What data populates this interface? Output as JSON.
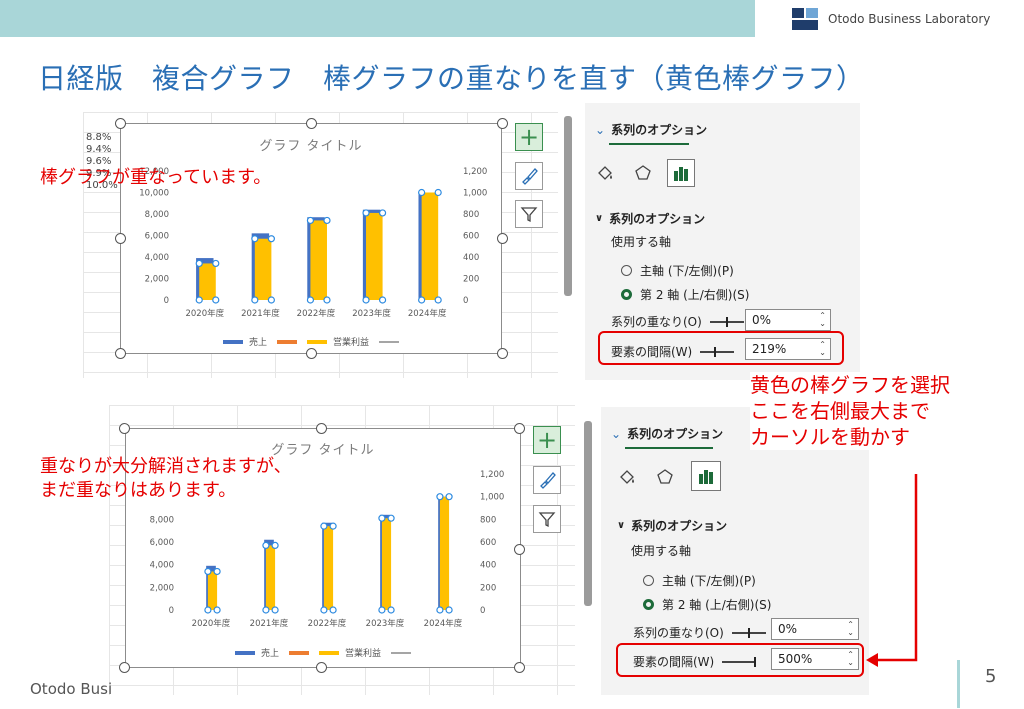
{
  "header": {
    "brand": "Otodo Business Laboratory",
    "title": "日経版　複合グラフ　棒グラフの重なりを直す（黄色棒グラフ）",
    "colors": {
      "bar": "#a9d6d8",
      "title": "#2a6fb5",
      "logo_dark": "#1f3d6b",
      "logo_light": "#6fa6d6"
    }
  },
  "chart1": {
    "title": "グラフ タイトル",
    "note": "棒グラフが重なっています。",
    "stray_labels": [
      "8.8%",
      "9.4%",
      "9.6%",
      "9.9%",
      "10.0%"
    ],
    "legend": [
      "売上",
      "",
      "営業利益",
      ""
    ]
  },
  "chart2": {
    "title": "グラフ タイトル",
    "note_lines": [
      "重なりが大分解消されますが、",
      "まだ重なりはあります。"
    ],
    "legend": [
      "売上",
      "",
      "営業利益",
      ""
    ]
  },
  "chart_data": [
    {
      "type": "bar",
      "title": "グラフ タイトル",
      "categories": [
        "2020年度",
        "2021年度",
        "2022年度",
        "2023年度",
        "2024年度"
      ],
      "y_ticks": [
        "0",
        "2,000",
        "4,000",
        "6,000",
        "8,000",
        "10,000",
        "12,000"
      ],
      "y2_ticks": [
        "0",
        "200",
        "400",
        "600",
        "800",
        "1,000",
        "1,200"
      ],
      "ylim": [
        0,
        12000
      ],
      "y2lim": [
        0,
        1200
      ],
      "series": [
        {
          "name": "売上",
          "axis": "primary",
          "color": "#4472c4",
          "values": [
            3900,
            6200,
            7700,
            8400,
            10000
          ]
        },
        {
          "name": "営業利益",
          "axis": "secondary",
          "color": "#ffc000",
          "values": [
            340,
            570,
            740,
            810,
            1000
          ]
        }
      ],
      "legend_colors": [
        "#4472c4",
        "#ed7d31",
        "#ffc000",
        "#a5a5a5"
      ],
      "gap_width": 219
    },
    {
      "type": "bar",
      "title": "グラフ タイトル",
      "categories": [
        "2020年度",
        "2021年度",
        "2022年度",
        "2023年度",
        "2024年度"
      ],
      "y_ticks": [
        "0",
        "2,000",
        "4,000",
        "6,000",
        "8,000"
      ],
      "y2_ticks": [
        "0",
        "200",
        "400",
        "600",
        "800",
        "1,000",
        "1,200"
      ],
      "ylim": [
        0,
        12000
      ],
      "y2lim": [
        0,
        1200
      ],
      "series": [
        {
          "name": "売上",
          "axis": "primary",
          "color": "#4472c4",
          "values": [
            3900,
            6200,
            7700,
            8400,
            10000
          ]
        },
        {
          "name": "営業利益",
          "axis": "secondary",
          "color": "#ffc000",
          "values": [
            340,
            570,
            740,
            810,
            1000
          ]
        }
      ],
      "legend_colors": [
        "#4472c4",
        "#ed7d31",
        "#ffc000",
        "#a5a5a5"
      ],
      "gap_width": 500
    }
  ],
  "pane1": {
    "tab": "系列のオプション",
    "section": "系列のオプション",
    "axis_label": "使用する軸",
    "primary": "主軸 (下/左側)(P)",
    "secondary": "第 2 軸 (上/右側)(S)",
    "overlap_label": "系列の重なり(O)",
    "overlap_value": "0%",
    "gap_label": "要素の間隔(W)",
    "gap_value": "219%"
  },
  "pane2": {
    "tab": "系列のオプション",
    "section": "系列のオプション",
    "axis_label": "使用する軸",
    "primary": "主軸 (下/左側)(P)",
    "secondary": "第 2 軸 (上/右側)(S)",
    "overlap_label": "系列の重なり(O)",
    "overlap_value": "0%",
    "gap_label": "要素の間隔(W)",
    "gap_value": "500%"
  },
  "callout": {
    "lines": [
      "黄色の棒グラフを選択",
      "ここを右側最大まで",
      "カーソルを動かす"
    ]
  },
  "footer": {
    "text": "Otodo Busi",
    "page": "5"
  }
}
